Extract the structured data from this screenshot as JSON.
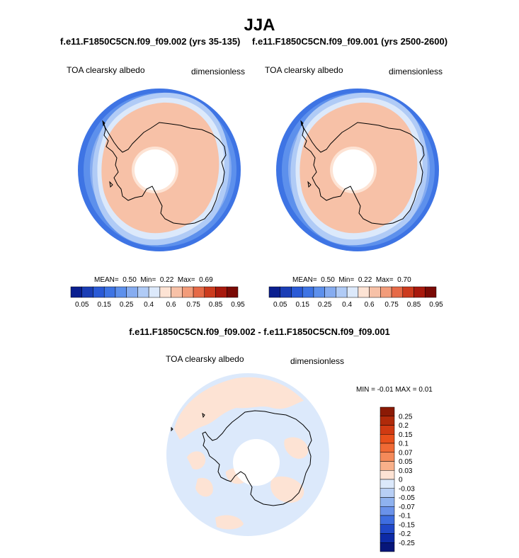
{
  "season": "JJA",
  "panels": [
    {
      "title": "f.e11.F1850C5CN.f09_f09.002 (yrs 35-135)",
      "variable": "TOA clearsky albedo",
      "units": "dimensionless",
      "mean_label": "MEAN=",
      "mean": "0.50",
      "min_label": "Min=",
      "min": "0.22",
      "max_label": "Max=",
      "max": "0.69"
    },
    {
      "title": "f.e11.F1850C5CN.f09_f09.001 (yrs 2500-2600)",
      "variable": "TOA clearsky albedo",
      "units": "dimensionless",
      "mean_label": "MEAN=",
      "mean": "0.50",
      "min_label": "Min=",
      "min": "0.22",
      "max_label": "Max=",
      "max": "0.70"
    }
  ],
  "diff_panel": {
    "title": "f.e11.F1850C5CN.f09_f09.002 - f.e11.F1850C5CN.f09_f09.001",
    "variable": "TOA clearsky albedo",
    "units": "dimensionless",
    "minmax": "MIN = -0.01  MAX =  0.01"
  },
  "chart_data": [
    {
      "type": "heatmap",
      "projection": "south polar stereographic",
      "variable": "TOA clearsky albedo",
      "colorbar": {
        "orientation": "horizontal",
        "levels": [
          0.05,
          0.1,
          0.15,
          0.2,
          0.25,
          0.3,
          0.4,
          0.5,
          0.6,
          0.7,
          0.75,
          0.8,
          0.85,
          0.9,
          0.95
        ],
        "tick_labels": [
          "0.05",
          "0.15",
          "0.25",
          "0.4",
          "0.6",
          "0.75",
          "0.85",
          "0.95"
        ],
        "colors": [
          "#0a1f8f",
          "#1a3db5",
          "#2a5ad6",
          "#3e74e4",
          "#5d90ec",
          "#86acf0",
          "#b0cbf6",
          "#dce9fb",
          "#fde3d4",
          "#f7c1a7",
          "#f29c7a",
          "#e66a47",
          "#cc3b1e",
          "#a8190d",
          "#7a0a05"
        ]
      },
      "stats": {
        "mean": 0.5,
        "min": 0.22,
        "max": 0.69
      }
    },
    {
      "type": "heatmap",
      "projection": "south polar stereographic",
      "variable": "TOA clearsky albedo",
      "stats": {
        "mean": 0.5,
        "min": 0.22,
        "max": 0.7
      }
    },
    {
      "type": "heatmap",
      "projection": "south polar stereographic",
      "variable": "TOA clearsky albedo difference",
      "colorbar": {
        "orientation": "vertical",
        "levels": [
          -0.25,
          -0.2,
          -0.15,
          -0.1,
          -0.07,
          -0.05,
          -0.03,
          0,
          0.03,
          0.05,
          0.07,
          0.1,
          0.15,
          0.2,
          0.25
        ],
        "tick_labels": [
          "0.25",
          "0.2",
          "0.15",
          "0.1",
          "0.07",
          "0.05",
          "0.03",
          "0",
          "-0.03",
          "-0.05",
          "-0.07",
          "-0.1",
          "-0.15",
          "-0.2",
          "-0.25"
        ],
        "colors_top_to_bottom": [
          "#8b1a05",
          "#b02a0a",
          "#d03a12",
          "#e8501b",
          "#f06a35",
          "#f48a5a",
          "#f8b08a",
          "#fde3d4",
          "#dce9fb",
          "#b8cff5",
          "#8fb2ef",
          "#6a92ea",
          "#3e6de0",
          "#2048c8",
          "#0d2aa6",
          "#07167a"
        ]
      },
      "stats": {
        "min": -0.01,
        "max": 0.01
      }
    }
  ]
}
